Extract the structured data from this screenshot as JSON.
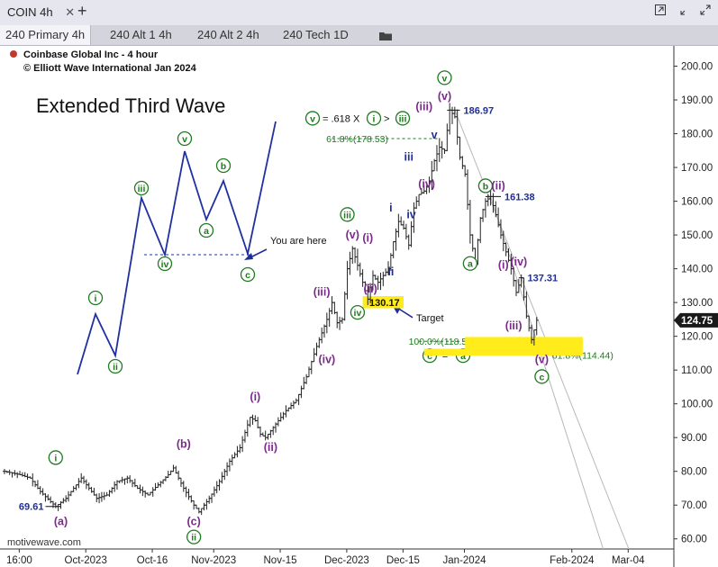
{
  "window": {
    "title": "COIN 4h",
    "close_glyph": "✕",
    "add_glyph": "+",
    "icons": [
      "popout-icon",
      "restore-icon",
      "expand-icon",
      "close-icon"
    ]
  },
  "tabs": [
    {
      "label": "240 Primary 4h",
      "active": true
    },
    {
      "label": "240 Alt 1 4h",
      "active": false
    },
    {
      "label": "240 Alt 2 4h",
      "active": false
    },
    {
      "label": "240 Tech 1D",
      "active": false
    }
  ],
  "header": {
    "line1": "Coinbase Global Inc - 4 hour",
    "line2": "© Elliott Wave International Jan 2024",
    "marker_color": "#c0392b"
  },
  "watermark": "motivewave.com",
  "colors": {
    "green": "#1e7a1e",
    "purple": "#7b2a8c",
    "blue": "#1f2d9a",
    "highlight": "#ffec1a",
    "price_tag": "#1a1a1a"
  },
  "chart_data": {
    "type": "candlestick",
    "instrument": "COIN",
    "timeframe": "4 hour",
    "y_axis": {
      "range": [
        57,
        206
      ],
      "ticks": [
        "60.00",
        "70.00",
        "80.00",
        "90.00",
        "100.00",
        "110.00",
        "120.00",
        "130.00",
        "140.00",
        "150.00",
        "160.00",
        "170.00",
        "180.00",
        "190.00",
        "200.00"
      ]
    },
    "x_axis": {
      "ticks": [
        {
          "label": "16:00",
          "bar": 2
        },
        {
          "label": "Oct-2023",
          "bar": 15
        },
        {
          "label": "Oct-16",
          "bar": 28
        },
        {
          "label": "Nov-2023",
          "bar": 40
        },
        {
          "label": "Nov-15",
          "bar": 53
        },
        {
          "label": "Dec-2023",
          "bar": 66
        },
        {
          "label": "Dec-15",
          "bar": 77
        },
        {
          "label": "Jan-2024",
          "bar": 89
        },
        {
          "label": "Feb-2024",
          "bar": 110
        },
        {
          "label": "Mar-04",
          "bar": 121
        }
      ]
    },
    "current_price": "124.75",
    "price_path": [
      [
        0,
        80
      ],
      [
        3,
        79
      ],
      [
        5,
        78
      ],
      [
        7,
        74
      ],
      [
        9,
        71
      ],
      [
        10,
        69.61
      ],
      [
        12,
        72
      ],
      [
        14,
        76
      ],
      [
        15,
        78
      ],
      [
        17,
        74
      ],
      [
        18,
        72
      ],
      [
        20,
        73
      ],
      [
        22,
        77
      ],
      [
        24,
        78
      ],
      [
        26,
        75
      ],
      [
        28,
        73
      ],
      [
        30,
        76
      ],
      [
        32,
        79
      ],
      [
        33,
        81
      ],
      [
        35,
        75
      ],
      [
        37,
        70
      ],
      [
        38,
        68
      ],
      [
        40,
        72
      ],
      [
        42,
        77
      ],
      [
        44,
        83
      ],
      [
        46,
        87
      ],
      [
        48,
        96
      ],
      [
        49,
        95
      ],
      [
        50,
        91
      ],
      [
        51,
        90
      ],
      [
        53,
        94
      ],
      [
        55,
        98
      ],
      [
        57,
        101
      ],
      [
        59,
        108
      ],
      [
        61,
        117
      ],
      [
        63,
        125
      ],
      [
        64,
        130
      ],
      [
        65,
        124
      ],
      [
        66,
        125
      ],
      [
        67,
        140
      ],
      [
        68,
        146
      ],
      [
        70,
        136
      ],
      [
        71,
        131
      ],
      [
        72,
        138
      ],
      [
        73,
        136
      ],
      [
        75,
        140
      ],
      [
        76,
        148
      ],
      [
        77,
        154
      ],
      [
        78,
        152
      ],
      [
        79,
        147
      ],
      [
        80,
        158
      ],
      [
        81,
        162
      ],
      [
        82,
        163
      ],
      [
        83,
        166
      ],
      [
        84,
        172
      ],
      [
        85,
        176
      ],
      [
        86,
        175
      ],
      [
        87,
        186.97
      ],
      [
        88,
        185
      ],
      [
        89,
        173
      ],
      [
        90,
        168
      ],
      [
        91,
        150
      ],
      [
        92,
        142
      ],
      [
        93,
        155
      ],
      [
        94,
        160
      ],
      [
        95,
        161.38
      ],
      [
        96,
        156
      ],
      [
        97,
        150
      ],
      [
        98,
        145
      ],
      [
        99,
        140
      ],
      [
        100,
        133
      ],
      [
        101,
        137.31
      ],
      [
        102,
        126
      ],
      [
        103,
        119
      ],
      [
        104,
        124.75
      ]
    ],
    "wave_labels": [
      {
        "text": "(a)",
        "bar": 11,
        "price": 64,
        "color": "purple",
        "style": "plain"
      },
      {
        "text": "i",
        "bar": 10,
        "price": 83,
        "color": "green",
        "style": "circle"
      },
      {
        "text": "(b)",
        "bar": 35,
        "price": 87,
        "color": "purple",
        "style": "plain"
      },
      {
        "text": "(c)",
        "bar": 37,
        "price": 64,
        "color": "purple",
        "style": "plain"
      },
      {
        "text": "ii",
        "bar": 37,
        "price": 59.5,
        "color": "green",
        "style": "circle"
      },
      {
        "text": "(i)",
        "bar": 49,
        "price": 101,
        "color": "purple",
        "style": "plain"
      },
      {
        "text": "(ii)",
        "bar": 52,
        "price": 86,
        "color": "purple",
        "style": "plain"
      },
      {
        "text": "(iii)",
        "bar": 62,
        "price": 132,
        "color": "purple",
        "style": "plain"
      },
      {
        "text": "(iv)",
        "bar": 63,
        "price": 112,
        "color": "purple",
        "style": "plain"
      },
      {
        "text": "(v)",
        "bar": 68,
        "price": 149,
        "color": "purple",
        "style": "plain"
      },
      {
        "text": "iii",
        "bar": 67,
        "price": 155,
        "color": "green",
        "style": "circle"
      },
      {
        "text": "iv",
        "bar": 69,
        "price": 126,
        "color": "green",
        "style": "circle"
      },
      {
        "text": "(i)",
        "bar": 71,
        "price": 148,
        "color": "purple",
        "style": "plain"
      },
      {
        "text": "(ii)",
        "bar": 71.5,
        "price": 133,
        "color": "purple",
        "style": "plain"
      },
      {
        "text": "i",
        "bar": 75.5,
        "price": 157,
        "color": "blue",
        "style": "plain"
      },
      {
        "text": "ii",
        "bar": 75.5,
        "price": 138,
        "color": "blue",
        "style": "plain"
      },
      {
        "text": "iii",
        "bar": 79,
        "price": 172,
        "color": "blue",
        "style": "plain"
      },
      {
        "text": "iv",
        "bar": 79.5,
        "price": 155,
        "color": "blue",
        "style": "plain"
      },
      {
        "text": "(iii)",
        "bar": 82,
        "price": 187,
        "color": "purple",
        "style": "plain"
      },
      {
        "text": "(iv)",
        "bar": 82.5,
        "price": 164,
        "color": "purple",
        "style": "plain"
      },
      {
        "text": "v",
        "bar": 84,
        "price": 178.5,
        "color": "blue",
        "style": "plain"
      },
      {
        "text": "(v)",
        "bar": 86,
        "price": 190,
        "color": "purple",
        "style": "plain"
      },
      {
        "text": "v",
        "bar": 86,
        "price": 195.5,
        "color": "green",
        "style": "circle"
      },
      {
        "text": "a",
        "bar": 91,
        "price": 140.5,
        "color": "green",
        "style": "circle"
      },
      {
        "text": "b",
        "bar": 94,
        "price": 163.5,
        "color": "green",
        "style": "circle"
      },
      {
        "text": "(ii)",
        "bar": 96.5,
        "price": 163.5,
        "color": "purple",
        "style": "plain"
      },
      {
        "text": "(i)",
        "bar": 97.5,
        "price": 140,
        "color": "purple",
        "style": "plain"
      },
      {
        "text": "(iv)",
        "bar": 100.5,
        "price": 141,
        "color": "purple",
        "style": "plain"
      },
      {
        "text": "(iii)",
        "bar": 99.5,
        "price": 122,
        "color": "purple",
        "style": "plain"
      },
      {
        "text": "(v)",
        "bar": 105,
        "price": 112,
        "color": "purple",
        "style": "plain"
      },
      {
        "text": "c",
        "bar": 105,
        "price": 107,
        "color": "green",
        "style": "circle"
      }
    ],
    "price_levels": [
      {
        "label": "186.97",
        "price": 186.97,
        "bar_from": 86.5,
        "bar_to": 89,
        "color": "blue"
      },
      {
        "label": "161.38",
        "price": 161.38,
        "bar_from": 94,
        "bar_to": 97,
        "color": "blue"
      },
      {
        "label": "137.31",
        "price": 137.31,
        "bar_from": 100.5,
        "bar_to": 101.5,
        "color": "blue"
      },
      {
        "label": "69.61",
        "price": 69.61,
        "bar_from": 8,
        "bar_to": 11,
        "color": "blue"
      }
    ],
    "fib_levels": [
      {
        "label": "61.8%(178.53)",
        "price": 178.53,
        "bar_from": 64,
        "bar_to": 85
      },
      {
        "label": "100.0%(118.52)",
        "price": 118.52,
        "bar_from": 81,
        "bar_to": 113
      },
      {
        "label": "61.8%(114.44)",
        "price": 114.44,
        "bar_from": 101,
        "bar_to": 106
      }
    ],
    "highlight_boxes": [
      {
        "label": "130.17",
        "price_low": 128.3,
        "price_high": 131.9,
        "bar_from": 70,
        "bar_to": 78
      },
      {
        "label": "",
        "price_low": 116.3,
        "price_high": 119.8,
        "bar_from": 90,
        "bar_to": 113
      },
      {
        "label": "",
        "price_low": 114.3,
        "price_high": 116.3,
        "bar_from": 82,
        "bar_to": 113
      }
    ],
    "annotations": {
      "target_label": "Target",
      "formula_eq": "= .618 X",
      "formula_gt": ">",
      "formula_terms": [
        "v",
        "i",
        "iii"
      ],
      "equality_terms": [
        "c",
        "a"
      ],
      "equality_sign": "="
    },
    "channel": [
      {
        "from": [
          88,
          186.97
        ],
        "to": [
          122,
          57
        ]
      },
      {
        "from": [
          95,
          161.38
        ],
        "to": [
          117,
          57
        ]
      }
    ],
    "inset": {
      "title": "Extended Third Wave",
      "you_are_here": "You are here",
      "labels": [
        "i",
        "ii",
        "iii",
        "iv",
        "v",
        "a",
        "b",
        "c"
      ]
    }
  }
}
